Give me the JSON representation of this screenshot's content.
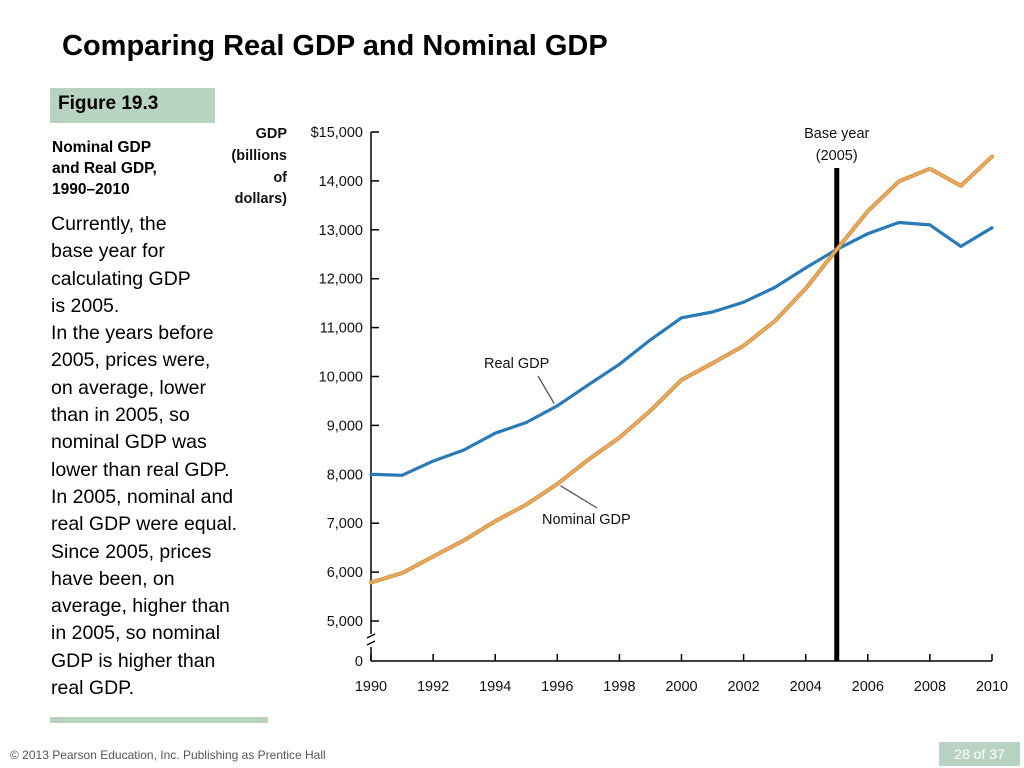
{
  "slide": {
    "title": "Comparing Real GDP and Nominal GDP",
    "figure_tag": "Figure 19.3",
    "caption_lines": [
      "Nominal GDP",
      "and Real GDP,",
      "1990–2010"
    ],
    "body_lines": [
      "Currently, the",
      "base year for",
      "calculating GDP",
      "is 2005.",
      "In the years before",
      "2005, prices were,",
      "on average, lower",
      "than in 2005, so",
      "nominal GDP was",
      "lower than real GDP.",
      "In 2005, nominal and",
      "real GDP were equal.",
      "Since 2005, prices",
      "have been, on",
      "average, higher than",
      "in 2005, so nominal",
      "GDP is higher than",
      "real GDP."
    ],
    "footer": "© 2013 Pearson Education, Inc. Publishing as Prentice Hall",
    "page_number": "28 of 37",
    "accent_color": "#b9d3c3"
  },
  "chart_data": {
    "type": "line",
    "ylabel_lines": [
      "GDP",
      "(billions",
      "of",
      "dollars)"
    ],
    "xlabel": "",
    "ylim": [
      5000,
      15000
    ],
    "axis_break": true,
    "y_zero_label": "0",
    "y_tick_labels": [
      "$15,000",
      "14,000",
      "13,000",
      "12,000",
      "11,000",
      "10,000",
      "9,000",
      "8,000",
      "7,000",
      "6,000",
      "5,000"
    ],
    "y_tick_values": [
      15000,
      14000,
      13000,
      12000,
      11000,
      10000,
      9000,
      8000,
      7000,
      6000,
      5000
    ],
    "x_tick_labels": [
      "1990",
      "1992",
      "1994",
      "1996",
      "1998",
      "2000",
      "2002",
      "2004",
      "2006",
      "2008",
      "2010"
    ],
    "xlim": [
      1990,
      2010
    ],
    "grid": false,
    "base_year": {
      "year": 2005,
      "label_lines": [
        "Base year",
        "(2005)"
      ]
    },
    "series": [
      {
        "name": "Real GDP",
        "color": "#2a7ab8",
        "x": [
          1990,
          1991,
          1992,
          1993,
          1994,
          1995,
          1996,
          1997,
          1998,
          1999,
          2000,
          2001,
          2002,
          2003,
          2004,
          2005,
          2006,
          2007,
          2008,
          2009,
          2010
        ],
        "values": [
          8000,
          7980,
          8270,
          8500,
          8840,
          9060,
          9400,
          9830,
          10250,
          10750,
          11200,
          11320,
          11520,
          11820,
          12220,
          12600,
          12920,
          13150,
          13100,
          12660,
          13040
        ]
      },
      {
        "name": "Nominal GDP",
        "color": "#e9a85b",
        "x": [
          1990,
          1991,
          1992,
          1993,
          1994,
          1995,
          1996,
          1997,
          1998,
          1999,
          2000,
          2001,
          2002,
          2003,
          2004,
          2005,
          2006,
          2007,
          2008,
          2009,
          2010
        ],
        "values": [
          5790,
          5980,
          6320,
          6650,
          7040,
          7380,
          7800,
          8300,
          8750,
          9300,
          9930,
          10270,
          10630,
          11130,
          11800,
          12600,
          13380,
          13990,
          14250,
          13900,
          14500
        ]
      }
    ],
    "annotations": [
      {
        "text": "Real GDP",
        "series": "Real GDP",
        "x_at": 1995.9
      },
      {
        "text": "Nominal GDP",
        "series": "Nominal GDP",
        "x_at": 1996.1
      }
    ]
  }
}
